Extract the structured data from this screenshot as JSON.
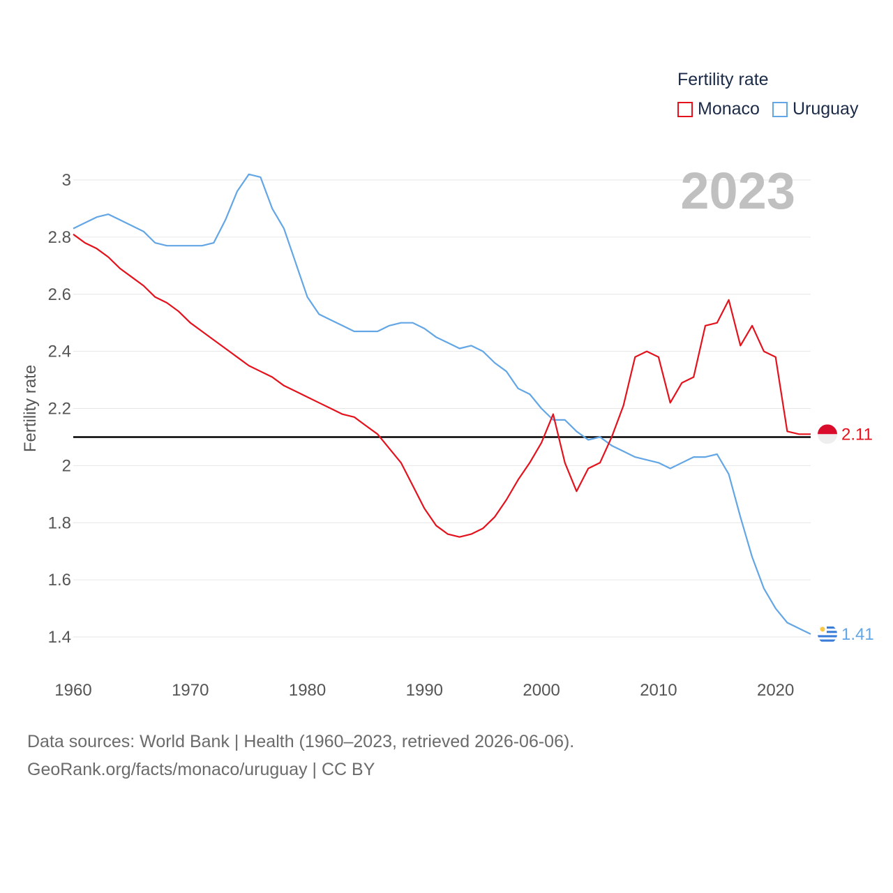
{
  "legend": {
    "title": "Fertility rate"
  },
  "colors": {
    "monaco": "#e3121c",
    "uruguay": "#63a6e6",
    "year": "#c0c0c0",
    "axis_text": "#555555",
    "grid": "#e6e6e6",
    "reference": "#000000"
  },
  "footer": {
    "line1": "Data sources: World Bank | Health (1960–2023, retrieved 2026-06-06).",
    "line2": "GeoRank.org/facts/monaco/uruguay | CC BY"
  },
  "chart_data": {
    "type": "line",
    "title": "Fertility rate",
    "year_label": "2023",
    "ylabel": "Fertility rate",
    "xlabel": "",
    "xlim": [
      1960,
      2023
    ],
    "ylim": [
      1.4,
      3
    ],
    "xticks": [
      1960,
      1970,
      1980,
      1990,
      2000,
      2010,
      2020
    ],
    "yticks": [
      1.4,
      1.6,
      1.8,
      2,
      2.2,
      2.4,
      2.6,
      2.8,
      3
    ],
    "ytick_labels": [
      "1.4",
      "1.6",
      "1.8",
      "2",
      "2.2",
      "2.4",
      "2.6",
      "2.8",
      "3"
    ],
    "reference_line": 2.1,
    "x_start": 1960,
    "series": [
      {
        "name": "Monaco",
        "color": "#e3121c",
        "end_label": "2.11",
        "values": [
          2.81,
          2.78,
          2.76,
          2.73,
          2.69,
          2.66,
          2.63,
          2.59,
          2.57,
          2.54,
          2.5,
          2.47,
          2.44,
          2.41,
          2.38,
          2.35,
          2.33,
          2.31,
          2.28,
          2.26,
          2.24,
          2.22,
          2.2,
          2.18,
          2.17,
          2.14,
          2.11,
          2.06,
          2.01,
          1.93,
          1.85,
          1.79,
          1.76,
          1.75,
          1.76,
          1.78,
          1.82,
          1.88,
          1.95,
          2.01,
          2.08,
          2.18,
          2.01,
          1.91,
          1.99,
          2.01,
          2.1,
          2.21,
          2.38,
          2.4,
          2.38,
          2.22,
          2.29,
          2.31,
          2.49,
          2.5,
          2.58,
          2.42,
          2.49,
          2.4,
          2.38,
          2.12,
          2.11,
          2.11
        ]
      },
      {
        "name": "Uruguay",
        "color": "#63a6e6",
        "end_label": "1.41",
        "values": [
          2.83,
          2.85,
          2.87,
          2.88,
          2.86,
          2.84,
          2.82,
          2.78,
          2.77,
          2.77,
          2.77,
          2.77,
          2.78,
          2.86,
          2.96,
          3.02,
          3.01,
          2.9,
          2.83,
          2.71,
          2.59,
          2.53,
          2.51,
          2.49,
          2.47,
          2.47,
          2.47,
          2.49,
          2.5,
          2.5,
          2.48,
          2.45,
          2.43,
          2.41,
          2.42,
          2.4,
          2.36,
          2.33,
          2.27,
          2.25,
          2.2,
          2.16,
          2.16,
          2.12,
          2.09,
          2.1,
          2.07,
          2.05,
          2.03,
          2.02,
          2.01,
          1.99,
          2.01,
          2.03,
          2.03,
          2.04,
          1.97,
          1.82,
          1.68,
          1.57,
          1.5,
          1.45,
          1.43,
          1.41
        ]
      }
    ]
  }
}
